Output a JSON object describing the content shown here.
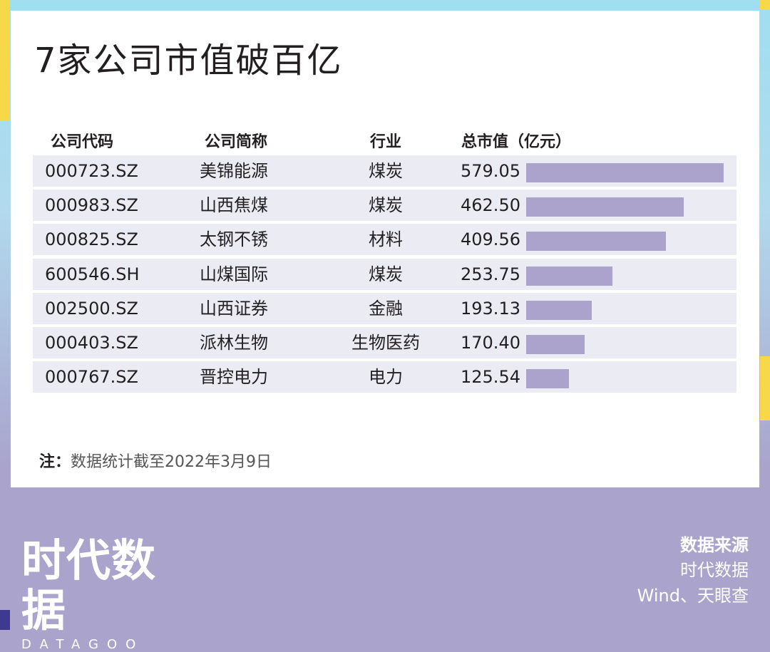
{
  "title": "7家公司市值破百亿",
  "chart_data": {
    "type": "table",
    "columns": [
      "公司代码",
      "公司简称",
      "行业",
      "总市值（亿元）"
    ],
    "rows": [
      {
        "code": "000723.SZ",
        "name": "美锦能源",
        "industry": "煤炭",
        "value": 579.05,
        "value_label": "579.05"
      },
      {
        "code": "000983.SZ",
        "name": "山西焦煤",
        "industry": "煤炭",
        "value": 462.5,
        "value_label": "462.50"
      },
      {
        "code": "000825.SZ",
        "name": "太钢不锈",
        "industry": "材料",
        "value": 409.56,
        "value_label": "409.56"
      },
      {
        "code": "600546.SH",
        "name": "山煤国际",
        "industry": "煤炭",
        "value": 253.75,
        "value_label": "253.75"
      },
      {
        "code": "002500.SZ",
        "name": "山西证券",
        "industry": "金融",
        "value": 193.13,
        "value_label": "193.13"
      },
      {
        "code": "000403.SZ",
        "name": "派林生物",
        "industry": "生物医药",
        "value": 170.4,
        "value_label": "170.40"
      },
      {
        "code": "000767.SZ",
        "name": "晋控电力",
        "industry": "电力",
        "value": 125.54,
        "value_label": "125.54"
      }
    ],
    "bar_color": "#aca3cd"
  },
  "note": {
    "label": "注：",
    "text": "数据统计截至2022年3月9日"
  },
  "logo": {
    "main": "时代数据",
    "sub": "DATAGOO"
  },
  "source": {
    "title": "数据来源",
    "lines": [
      "时代数据",
      "Wind、天眼查"
    ]
  }
}
